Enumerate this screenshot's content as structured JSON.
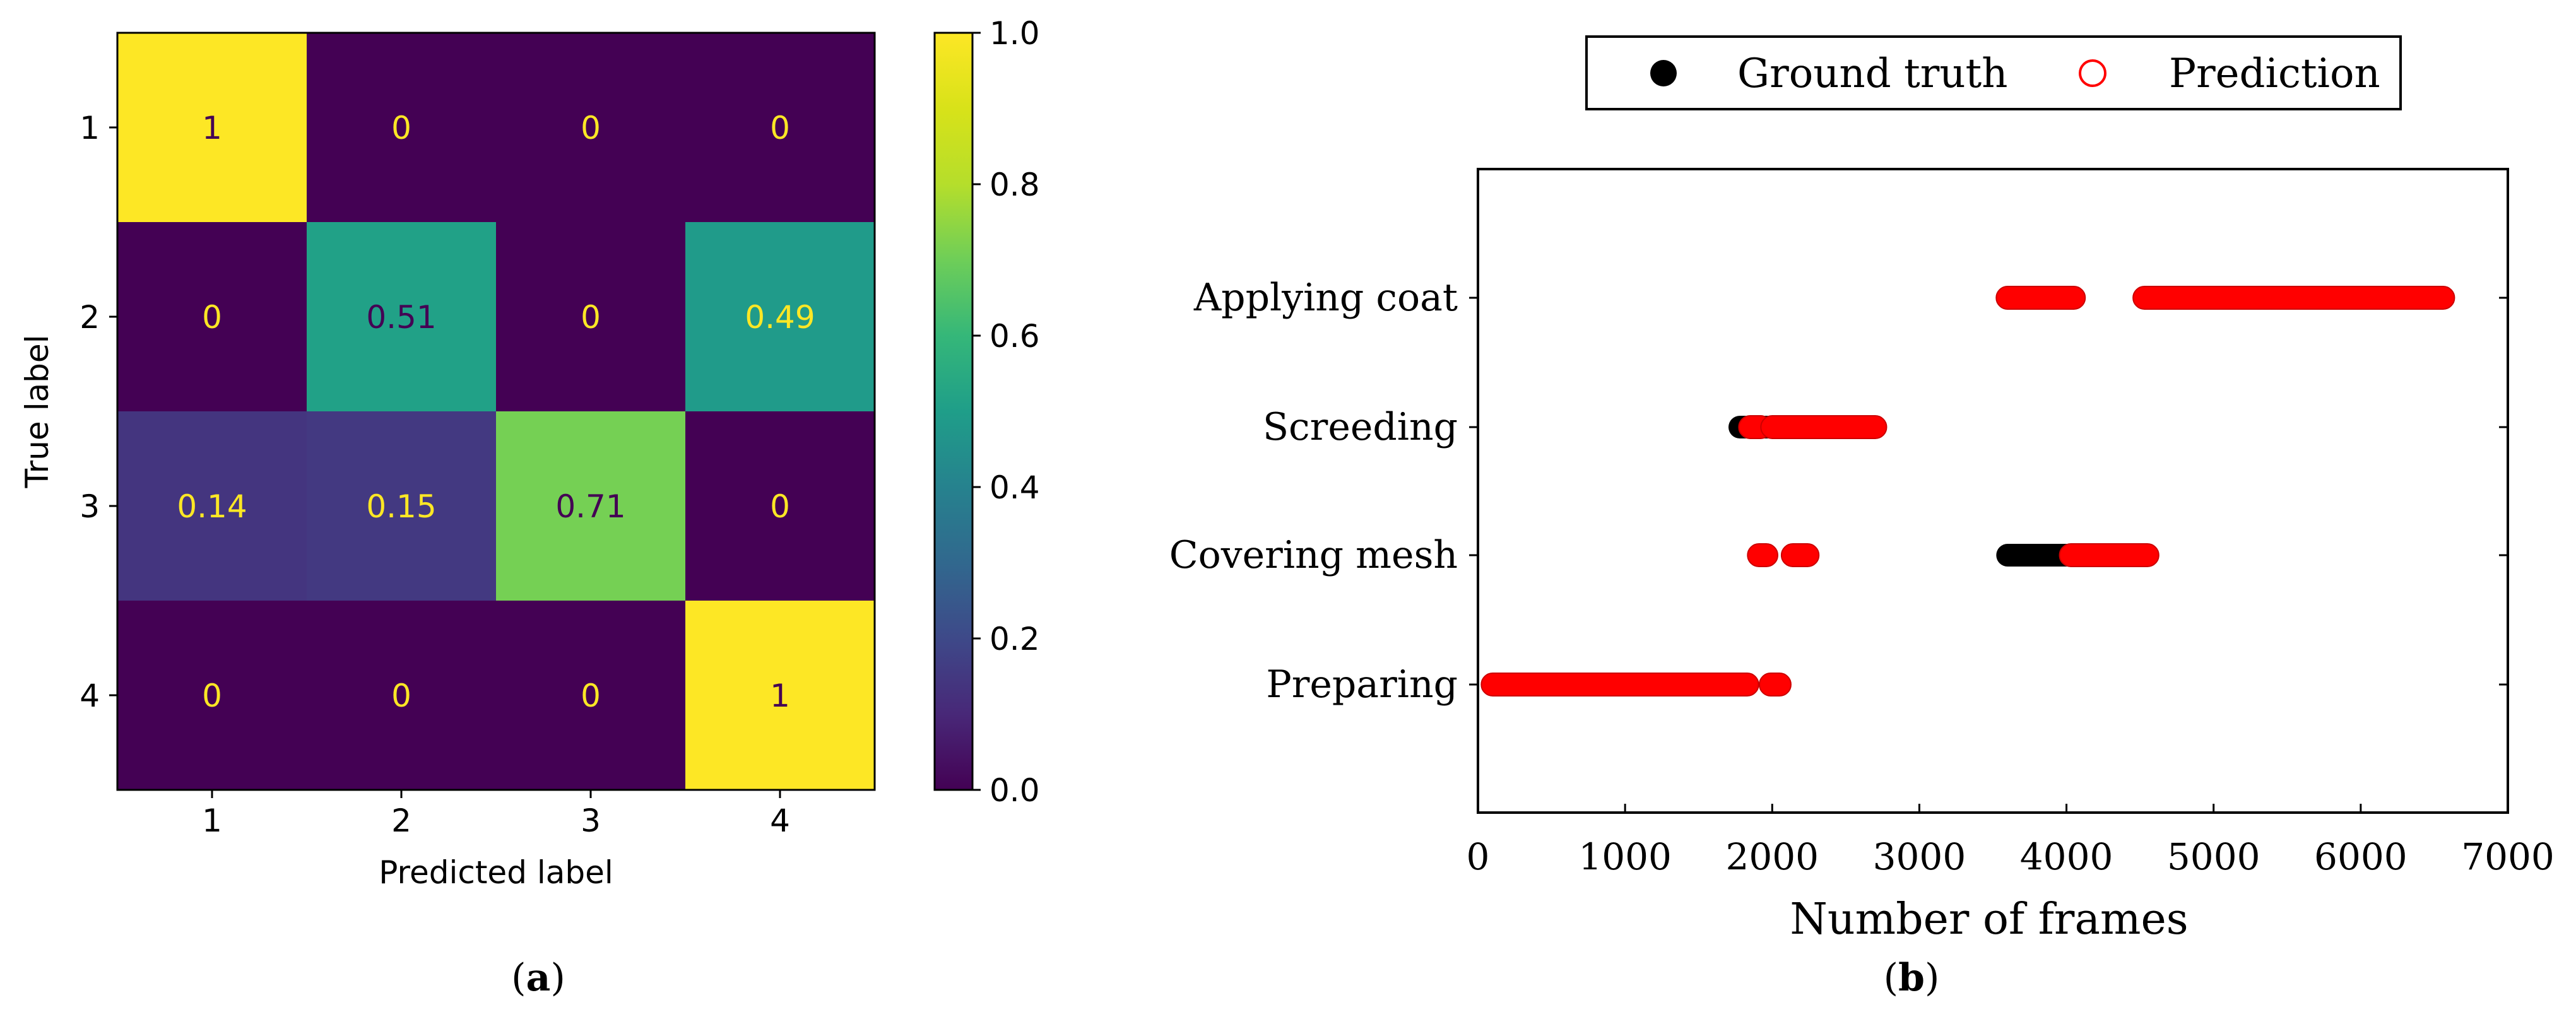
{
  "chart_data": [
    {
      "type": "heatmap",
      "panel_label": "a",
      "title": "",
      "xlabel": "Predicted label",
      "ylabel": "True label",
      "x_categories": [
        "1",
        "2",
        "3",
        "4"
      ],
      "y_categories": [
        "1",
        "2",
        "3",
        "4"
      ],
      "matrix": [
        [
          1,
          0,
          0,
          0
        ],
        [
          0,
          0.51,
          0,
          0.49
        ],
        [
          0.14,
          0.15,
          0.71,
          0
        ],
        [
          0,
          0,
          0,
          1
        ]
      ],
      "cell_labels": [
        [
          "1",
          "0",
          "0",
          "0"
        ],
        [
          "0",
          "0.51",
          "0",
          "0.49"
        ],
        [
          "0.14",
          "0.15",
          "0.71",
          "0"
        ],
        [
          "0",
          "0",
          "0",
          "1"
        ]
      ],
      "colormap": "viridis",
      "colorbar": {
        "range": [
          0,
          1
        ],
        "ticks": [
          0,
          0.2,
          0.4,
          0.6,
          0.8,
          1.0
        ],
        "tick_labels": [
          "0.0",
          "0.2",
          "0.4",
          "0.6",
          "0.8",
          "1.0"
        ]
      }
    },
    {
      "type": "scatter",
      "panel_label": "b",
      "title": "",
      "xlabel": "Number of frames",
      "ylabel": "",
      "xlim": [
        0,
        7000
      ],
      "x_ticks": [
        0,
        1000,
        2000,
        3000,
        4000,
        5000,
        6000,
        7000
      ],
      "x_tick_labels": [
        "0",
        "1000",
        "2000",
        "3000",
        "4000",
        "5000",
        "6000",
        "7000"
      ],
      "categories": [
        "Preparing",
        "Covering mesh",
        "Screeding",
        "Applying coat"
      ],
      "legend": {
        "position": "top",
        "entries": [
          "Ground truth",
          "Prediction"
        ]
      },
      "series": [
        {
          "name": "Ground truth",
          "marker": "filled-circle",
          "color": "#000000",
          "segments": [
            {
              "category": "Preparing",
              "start": 100,
              "end": 1800
            },
            {
              "category": "Covering mesh",
              "start": 3600,
              "end": 4550
            },
            {
              "category": "Screeding",
              "start": 1780,
              "end": 2700
            },
            {
              "category": "Applying coat",
              "start": 4530,
              "end": 6560
            }
          ]
        },
        {
          "name": "Prediction",
          "marker": "open-circle",
          "color": "#ff0000",
          "segments": [
            {
              "category": "Preparing",
              "start": 100,
              "end": 1830
            },
            {
              "category": "Preparing",
              "start": 1990,
              "end": 2050
            },
            {
              "category": "Covering mesh",
              "start": 1910,
              "end": 1960
            },
            {
              "category": "Covering mesh",
              "start": 2140,
              "end": 2240
            },
            {
              "category": "Covering mesh",
              "start": 4030,
              "end": 4550
            },
            {
              "category": "Screeding",
              "start": 1850,
              "end": 1920
            },
            {
              "category": "Screeding",
              "start": 2000,
              "end": 2700
            },
            {
              "category": "Applying coat",
              "start": 3600,
              "end": 4050
            },
            {
              "category": "Applying coat",
              "start": 4530,
              "end": 6560
            }
          ]
        }
      ]
    }
  ]
}
